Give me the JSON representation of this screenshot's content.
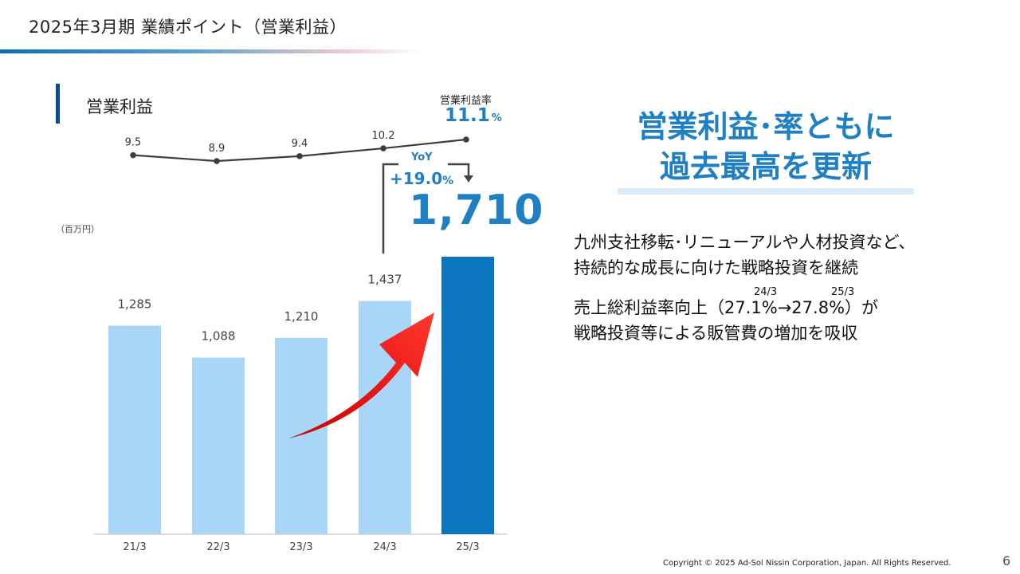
{
  "header": {
    "title": "2025年3月期 業績ポイント（営業利益）"
  },
  "section": {
    "title": "営業利益"
  },
  "rate": {
    "caption": "営業利益率",
    "value": "11.1",
    "unit": "%"
  },
  "unit_label": "（百万円）",
  "yoy": {
    "label": "YoY",
    "value": "+19.0",
    "unit": "%"
  },
  "highlight_value": "1,710",
  "headline": {
    "line1": "営業利益･率ともに",
    "line2": "過去最高を更新"
  },
  "bullets": {
    "b1_line1": "九州支社移転･リニューアルや人材投資など、",
    "b1_line2": "持続的な成長に向けた戦略投資を継続",
    "b2_line1": "売上総利益率向上（27.1%→27.8%）が",
    "b2_line2": "戦略投資等による販管費の増加を吸収",
    "b2_note1": "24/3",
    "b2_note2": "25/3"
  },
  "footer": {
    "copyright": "Copyright © 2025 Ad-Sol Nissin Corporation, Japan. All Rights Reserved.",
    "page": "6"
  },
  "colors": {
    "bar": "#a9d6f7",
    "bar_highlight": "#0b76bd",
    "accent": "#1e7fc2",
    "line": "#3d3d3d",
    "arrow": "#ee1c1c"
  },
  "chart_data": [
    {
      "type": "bar",
      "categories": [
        "21/3",
        "22/3",
        "23/3",
        "24/3",
        "25/3"
      ],
      "values": [
        1285,
        1088,
        1210,
        1437,
        1710
      ],
      "value_labels": [
        "1,285",
        "1,088",
        "1,210",
        "1,437",
        ""
      ],
      "title": "営業利益",
      "ylabel": "（百万円）",
      "ylim": [
        0,
        1800
      ],
      "grid": false
    },
    {
      "type": "line",
      "categories": [
        "21/3",
        "22/3",
        "23/3",
        "24/3",
        "25/3"
      ],
      "values": [
        9.5,
        8.9,
        9.4,
        10.2,
        11.1
      ],
      "value_labels": [
        "9.5",
        "8.9",
        "9.4",
        "10.2",
        ""
      ],
      "title": "営業利益率",
      "ylim": [
        8.9,
        11.1
      ]
    }
  ]
}
